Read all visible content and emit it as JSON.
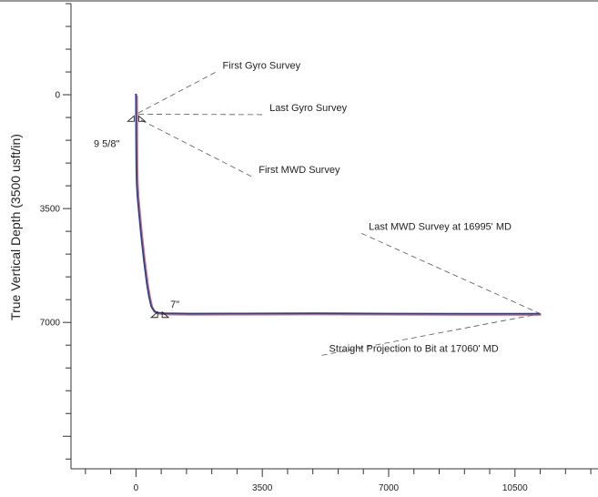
{
  "chart_data": {
    "type": "line",
    "title": "",
    "ylabel": "True Vertical Depth (3500 usft/in)",
    "xlabel": "",
    "xlim": [
      -1800,
      12800
    ],
    "ylim": [
      -2800,
      11500
    ],
    "y_inverted": true,
    "x_ticks": [
      0,
      3500,
      7000,
      10500
    ],
    "y_ticks": [
      0,
      3500,
      7000
    ],
    "series": [
      {
        "name": "",
        "color": "#2a3fa0",
        "x": [
          0,
          2,
          5,
          10,
          20,
          40,
          80,
          140,
          220,
          300,
          360,
          420,
          500,
          600,
          800,
          1500,
          3000,
          5000,
          7000,
          9000,
          10500,
          11200
        ],
        "y": [
          0,
          700,
          1500,
          2200,
          2700,
          3100,
          3600,
          4300,
          5100,
          5800,
          6200,
          6500,
          6650,
          6700,
          6720,
          6730,
          6725,
          6720,
          6728,
          6732,
          6732,
          6733
        ]
      }
    ],
    "casing_markers": [
      {
        "label": "9 5/8\"",
        "x": 0,
        "y": 650
      },
      {
        "label": "7\"",
        "x": 650,
        "y": 6680
      }
    ],
    "annotations": [
      {
        "text": "First Gyro Survey",
        "text_x": 2400,
        "text_y": -800,
        "target_x": 0,
        "target_y": 600
      },
      {
        "text": "Last Gyro Survey",
        "text_x": 3700,
        "text_y": 500,
        "target_x": 0,
        "target_y": 600
      },
      {
        "text": "First MWD Survey",
        "text_x": 3400,
        "text_y": 2400,
        "target_x": 0,
        "target_y": 700
      },
      {
        "text": "Last MWD Survey at 16995' MD",
        "text_x": 6450,
        "text_y": 4150,
        "target_x": 11200,
        "target_y": 6733
      },
      {
        "text": "Straight Projection to Bit at 17060' MD",
        "text_x": 5350,
        "text_y": 7900,
        "target_x": 11200,
        "target_y": 6733
      }
    ]
  }
}
